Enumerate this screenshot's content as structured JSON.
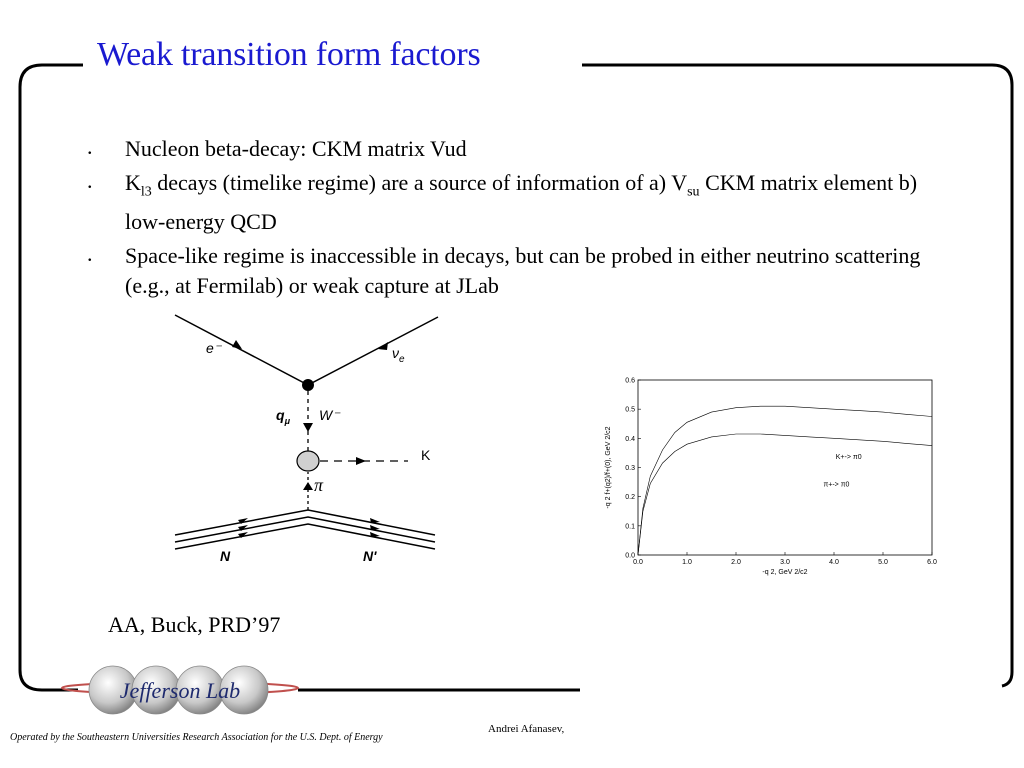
{
  "slide": {
    "title": "Weak transition form factors",
    "bullets": [
      {
        "marker": ".",
        "parts": [
          {
            "t": "Nucleon beta-decay: CKM matrix Vud"
          }
        ]
      },
      {
        "marker": ".",
        "parts": [
          {
            "t": "K"
          },
          {
            "t": "l3",
            "sub": true
          },
          {
            "t": " decays (timelike regime) are a source of information of a) V"
          },
          {
            "t": "su",
            "sub": true
          },
          {
            "t": " CKM matrix element b) low-energy QCD"
          }
        ]
      },
      {
        "marker": ".",
        "parts": [
          {
            "t": "Space-like regime is inaccessible in decays, but can be probed in either neutrino scattering (e.g., at Fermilab) or weak capture at JLab"
          }
        ]
      }
    ],
    "citation": "AA, Buck, PRD’97"
  },
  "feynman": {
    "labels": {
      "electron": "e⁻",
      "neutrino": "ν",
      "neutrino_sub": "e",
      "q": "q",
      "q_sub": "μ",
      "w": "W⁻",
      "kaon": "K",
      "pion": "π",
      "nucleon_in": "N",
      "nucleon_out": "N'"
    }
  },
  "chart_data": {
    "type": "line",
    "xlabel": "-q 2, GeV 2/c2",
    "ylabel": "-q 2 f+(q2)/f+(0), GeV 2/c2",
    "xlim": [
      0,
      6
    ],
    "ylim": [
      0,
      0.6
    ],
    "xticks": [
      "0.0",
      "1.0",
      "2.0",
      "3.0",
      "4.0",
      "5.0",
      "6.0"
    ],
    "yticks": [
      "0.0",
      "0.1",
      "0.2",
      "0.3",
      "0.4",
      "0.5",
      "0.6"
    ],
    "grid": false,
    "series": [
      {
        "name": "K+->  π0",
        "x": [
          0,
          0.1,
          0.25,
          0.5,
          0.75,
          1.0,
          1.5,
          2.0,
          2.5,
          3.0,
          3.5,
          4.0,
          4.5,
          5.0,
          5.5,
          6.0
        ],
        "y": [
          0,
          0.16,
          0.27,
          0.36,
          0.42,
          0.455,
          0.49,
          0.505,
          0.51,
          0.51,
          0.505,
          0.5,
          0.495,
          0.49,
          0.482,
          0.475
        ]
      },
      {
        "name": "π+->  π0",
        "x": [
          0,
          0.1,
          0.25,
          0.5,
          0.75,
          1.0,
          1.5,
          2.0,
          2.5,
          3.0,
          3.5,
          4.0,
          4.5,
          5.0,
          5.5,
          6.0
        ],
        "y": [
          0,
          0.15,
          0.245,
          0.315,
          0.355,
          0.38,
          0.405,
          0.415,
          0.415,
          0.41,
          0.405,
          0.4,
          0.395,
          0.39,
          0.382,
          0.375
        ]
      }
    ]
  },
  "footer": {
    "logo_text": "Jefferson Lab",
    "credit": "Operated by the Southeastern Universities Research Association for the U.S. Dept. of Energy",
    "author": "Andrei Afanasev,"
  }
}
